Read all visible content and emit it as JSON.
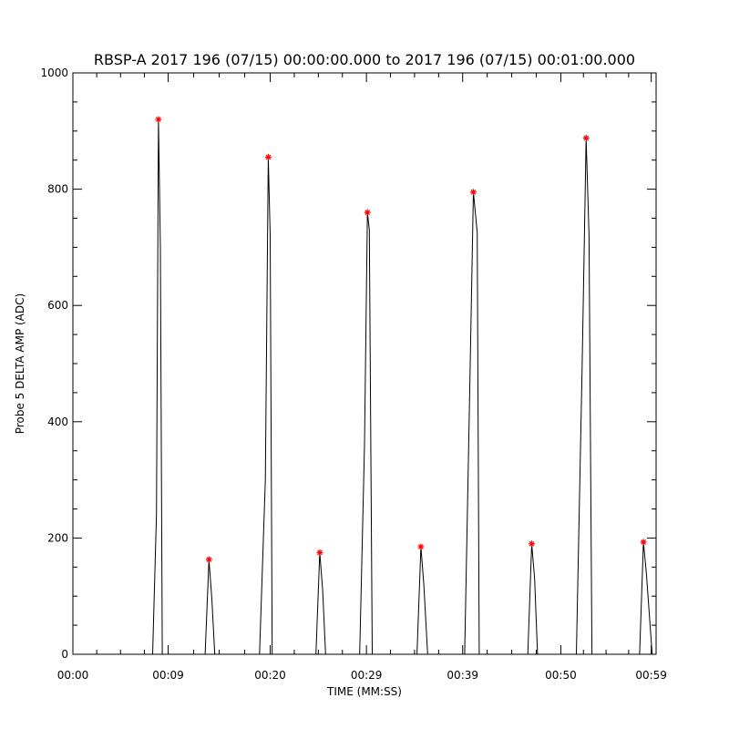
{
  "chart_data": {
    "type": "line",
    "title": "RBSP-A 2017 196 (07/15) 00:00:00.000 to 2017 196 (07/15) 00:01:00.000",
    "xlabel": "TIME (MM:SS)",
    "ylabel": "Probe 5 DELTA AMP (ADC)",
    "xlim": [
      0,
      60
    ],
    "ylim": [
      0,
      1000
    ],
    "x_ticks": [
      {
        "value": 0,
        "label": "00:00"
      },
      {
        "value": 9.8,
        "label": "00:09"
      },
      {
        "value": 20.3,
        "label": "00:20"
      },
      {
        "value": 30.2,
        "label": "00:29"
      },
      {
        "value": 40.1,
        "label": "00:39"
      },
      {
        "value": 50.2,
        "label": "00:50"
      },
      {
        "value": 59.5,
        "label": "00:59"
      }
    ],
    "y_ticks": [
      {
        "value": 0,
        "label": "0"
      },
      {
        "value": 200,
        "label": "200"
      },
      {
        "value": 400,
        "label": "400"
      },
      {
        "value": 600,
        "label": "600"
      },
      {
        "value": 800,
        "label": "800"
      },
      {
        "value": 1000,
        "label": "1000"
      }
    ],
    "series": [
      {
        "color": "#000000",
        "x": [
          0,
          7.0,
          8.2,
          8.6,
          8.8,
          9.0,
          9.2,
          9.5,
          10.5,
          13.6,
          14.0,
          14.3,
          14.6,
          19.2,
          19.8,
          20.1,
          20.3,
          20.5,
          20.8,
          21.3,
          22.0,
          25.0,
          25.4,
          25.7,
          26.0,
          29.5,
          30.0,
          30.3,
          30.5,
          30.8,
          31.0,
          32.0,
          35.4,
          35.8,
          36.1,
          36.5,
          40.3,
          40.8,
          41.2,
          41.6,
          41.8,
          42.1,
          43.0,
          46.8,
          47.2,
          47.5,
          47.8,
          51.8,
          52.4,
          52.8,
          53.1,
          53.4,
          54.5,
          58.3,
          58.7,
          59.0,
          59.6,
          60.0
        ],
        "y": [
          0,
          0,
          0,
          240,
          920,
          700,
          0,
          0,
          0,
          0,
          163,
          95,
          0,
          0,
          300,
          855,
          720,
          0,
          0,
          0,
          0,
          0,
          175,
          110,
          0,
          0,
          360,
          760,
          730,
          0,
          0,
          0,
          0,
          185,
          120,
          0,
          0,
          430,
          795,
          725,
          0,
          0,
          0,
          0,
          190,
          130,
          0,
          0,
          500,
          888,
          720,
          0,
          0,
          0,
          193,
          140,
          0,
          0
        ]
      }
    ],
    "markers": {
      "color": "#ff0000",
      "symbol": "asterisk",
      "x": [
        8.8,
        14.0,
        20.1,
        25.4,
        30.3,
        35.8,
        41.2,
        47.2,
        52.8,
        58.7
      ],
      "y": [
        920,
        163,
        855,
        175,
        760,
        185,
        795,
        190,
        888,
        193
      ]
    },
    "grid": false
  }
}
